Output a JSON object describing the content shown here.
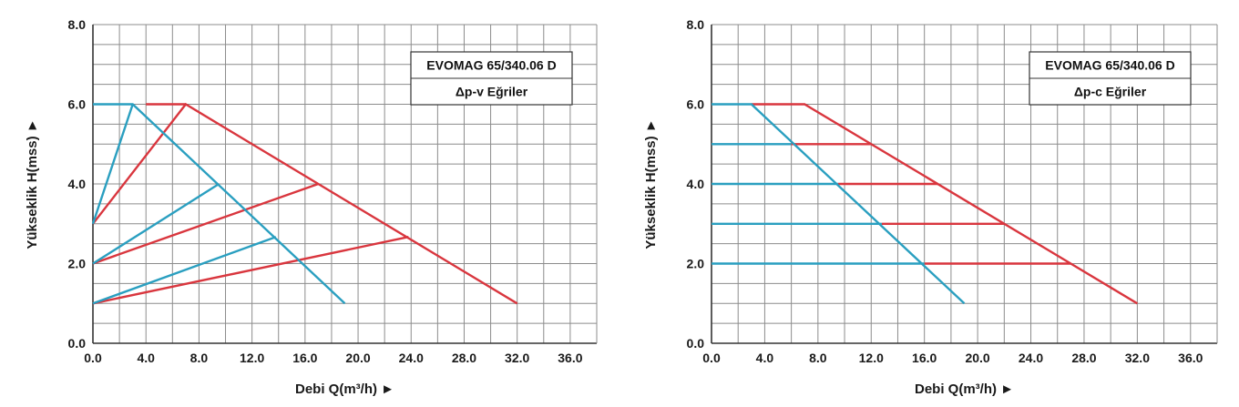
{
  "chart_data": [
    {
      "type": "line",
      "title_box": [
        "EVOMAG 65/340.06 D",
        "Δp-v Eğriler"
      ],
      "xlabel": "Debi Q(m³/h) ►",
      "ylabel": "Yükseklik H(mss) ►",
      "xlim": [
        0,
        38
      ],
      "ylim": [
        0,
        8
      ],
      "x_ticks": [
        "0.0",
        "4.0",
        "8.0",
        "12.0",
        "16.0",
        "20.0",
        "24.0",
        "28.0",
        "32.0",
        "36.0"
      ],
      "y_ticks": [
        "0.0",
        "2.0",
        "4.0",
        "6.0",
        "8.0"
      ],
      "grid": true,
      "series": [
        {
          "color": "#d9363e",
          "points": [
            [
              0,
              3
            ],
            [
              7,
              6
            ],
            [
              32,
              1
            ]
          ]
        },
        {
          "color": "#d9363e",
          "points": [
            [
              7,
              6
            ],
            [
              4,
              6
            ]
          ]
        },
        {
          "color": "#d9363e",
          "points": [
            [
              0,
              2
            ],
            [
              17,
              4
            ]
          ]
        },
        {
          "color": "#d9363e",
          "points": [
            [
              0,
              1
            ],
            [
              23.8,
              2.67
            ]
          ]
        },
        {
          "color": "#2a9fc0",
          "points": [
            [
              0,
              6
            ],
            [
              3,
              6
            ],
            [
              19,
              1
            ]
          ]
        },
        {
          "color": "#2a9fc0",
          "points": [
            [
              0,
              3
            ],
            [
              3,
              6
            ]
          ]
        },
        {
          "color": "#2a9fc0",
          "points": [
            [
              0,
              2
            ],
            [
              9.5,
              4
            ]
          ]
        },
        {
          "color": "#2a9fc0",
          "points": [
            [
              0,
              1
            ],
            [
              13.8,
              2.67
            ]
          ]
        }
      ]
    },
    {
      "type": "line",
      "title_box": [
        "EVOMAG 65/340.06 D",
        "Δp-c Eğriler"
      ],
      "xlabel": "Debi Q(m³/h) ►",
      "ylabel": "Yükseklik H(mss) ►",
      "xlim": [
        0,
        38
      ],
      "ylim": [
        0,
        8
      ],
      "x_ticks": [
        "0.0",
        "4.0",
        "8.0",
        "12.0",
        "16.0",
        "20.0",
        "24.0",
        "28.0",
        "32.0",
        "36.0"
      ],
      "y_ticks": [
        "0.0",
        "2.0",
        "4.0",
        "6.0",
        "8.0"
      ],
      "grid": true,
      "series": [
        {
          "color": "#d9363e",
          "points": [
            [
              3,
              6
            ],
            [
              7,
              6
            ],
            [
              32,
              1
            ]
          ]
        },
        {
          "color": "#d9363e",
          "points": [
            [
              6,
              5
            ],
            [
              12,
              5
            ]
          ]
        },
        {
          "color": "#d9363e",
          "points": [
            [
              9.5,
              4
            ],
            [
              17,
              4
            ]
          ]
        },
        {
          "color": "#d9363e",
          "points": [
            [
              12.8,
              3
            ],
            [
              22,
              3
            ]
          ]
        },
        {
          "color": "#d9363e",
          "points": [
            [
              16,
              2
            ],
            [
              27,
              2
            ]
          ]
        },
        {
          "color": "#2a9fc0",
          "points": [
            [
              0,
              6
            ],
            [
              3,
              6
            ],
            [
              19,
              1
            ]
          ]
        },
        {
          "color": "#2a9fc0",
          "points": [
            [
              0,
              5
            ],
            [
              6,
              5
            ]
          ]
        },
        {
          "color": "#2a9fc0",
          "points": [
            [
              0,
              4
            ],
            [
              9.5,
              4
            ]
          ]
        },
        {
          "color": "#2a9fc0",
          "points": [
            [
              0,
              3
            ],
            [
              12.8,
              3
            ]
          ]
        },
        {
          "color": "#2a9fc0",
          "points": [
            [
              0,
              2
            ],
            [
              16,
              2
            ]
          ]
        }
      ]
    }
  ]
}
